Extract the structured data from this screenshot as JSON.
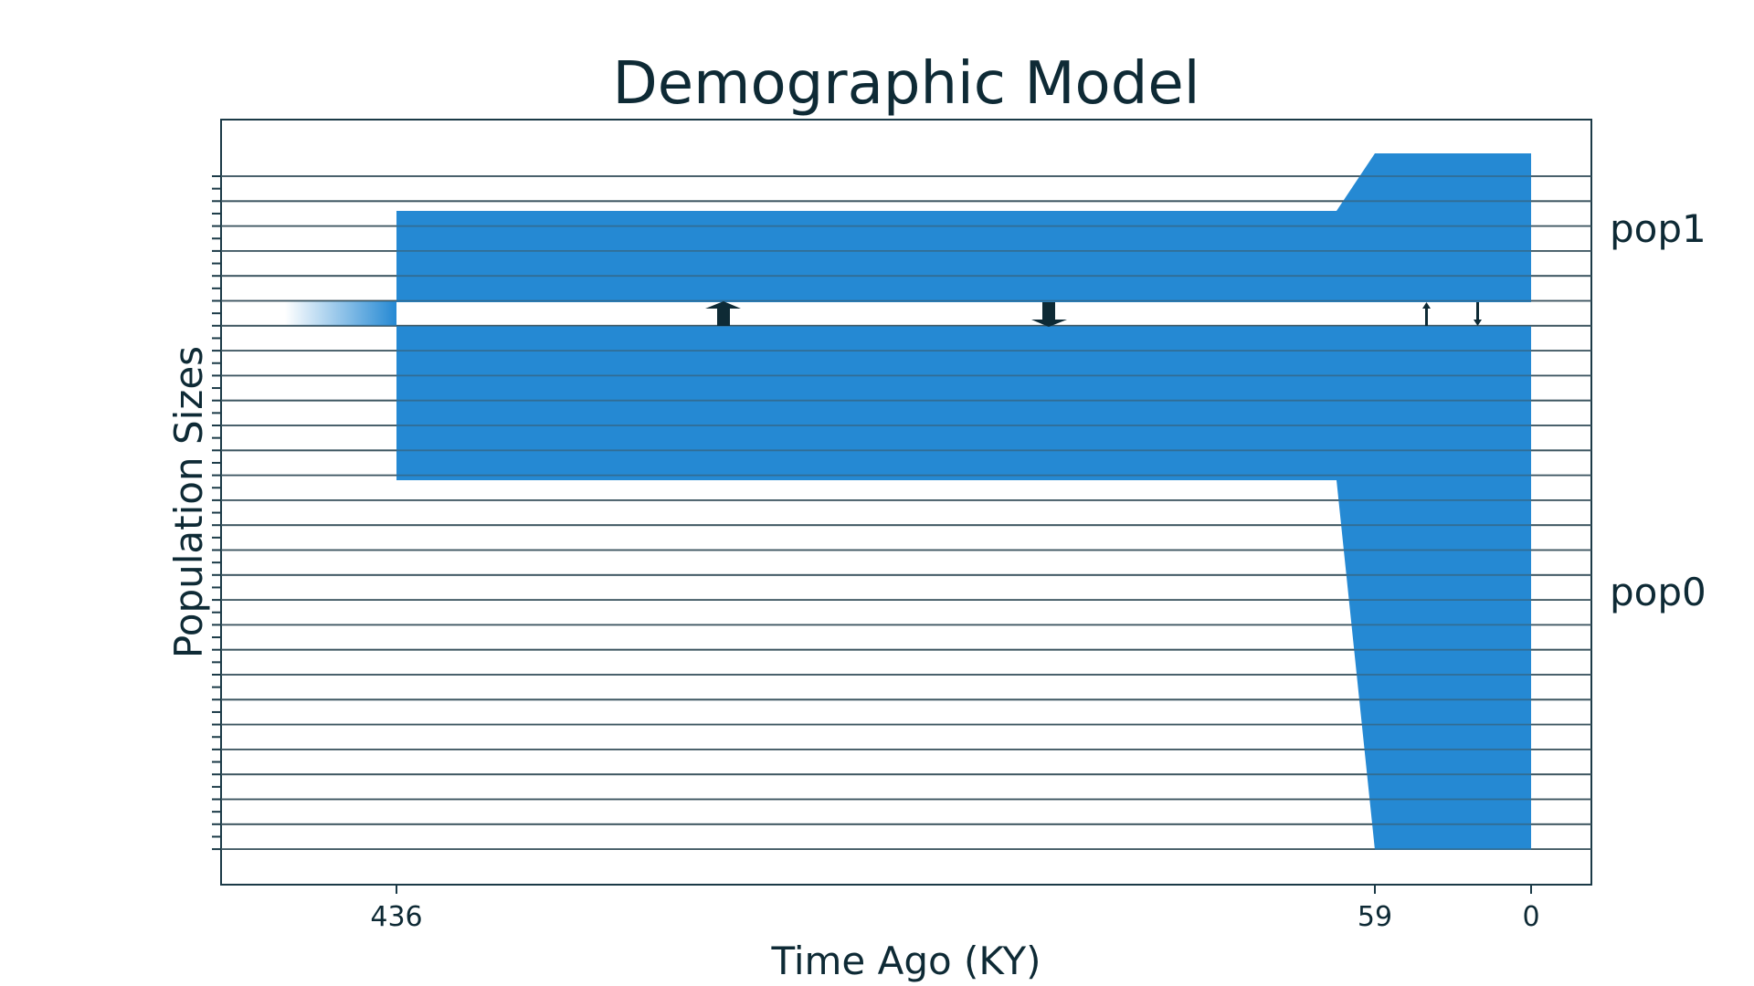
{
  "chart_data": {
    "type": "area",
    "title": "Demographic Model",
    "xlabel": "Time Ago (KY)",
    "ylabel": "Population Sizes",
    "x_ticks": [
      436,
      59,
      0
    ],
    "x_direction": "time ago, decreasing to the right",
    "populations": [
      {
        "name": "pop1",
        "color": "#2589d3",
        "segments": [
          {
            "from_ky": 436,
            "to_ky": 74,
            "size": "constant, smaller"
          },
          {
            "from_ky": 74,
            "to_ky": 59,
            "size": "expanding"
          },
          {
            "from_ky": 59,
            "to_ky": 0,
            "size": "constant, larger"
          }
        ]
      },
      {
        "name": "pop0",
        "color": "#2589d3",
        "segments": [
          {
            "from_ky": 436,
            "to_ky": 74,
            "size": "constant"
          },
          {
            "from_ky": 74,
            "to_ky": 59,
            "size": "expanding"
          },
          {
            "from_ky": 59,
            "to_ky": 0,
            "size": "constant, large"
          }
        ]
      }
    ],
    "split_time_ky": 436,
    "migration_arrows": [
      {
        "time_ky": 310,
        "direction": "pop0-to-pop1",
        "weight": "thick"
      },
      {
        "time_ky": 185,
        "direction": "pop1-to-pop0",
        "weight": "thick"
      },
      {
        "time_ky": 39,
        "direction": "pop0-to-pop1",
        "weight": "thin"
      },
      {
        "time_ky": 20,
        "direction": "pop1-to-pop0",
        "weight": "thin"
      }
    ],
    "grid": "horizontal lines",
    "colors": {
      "fill": "#2589d3",
      "text": "#0e2a35",
      "grid": "#3d5560",
      "frame": "#1b3a47"
    }
  }
}
